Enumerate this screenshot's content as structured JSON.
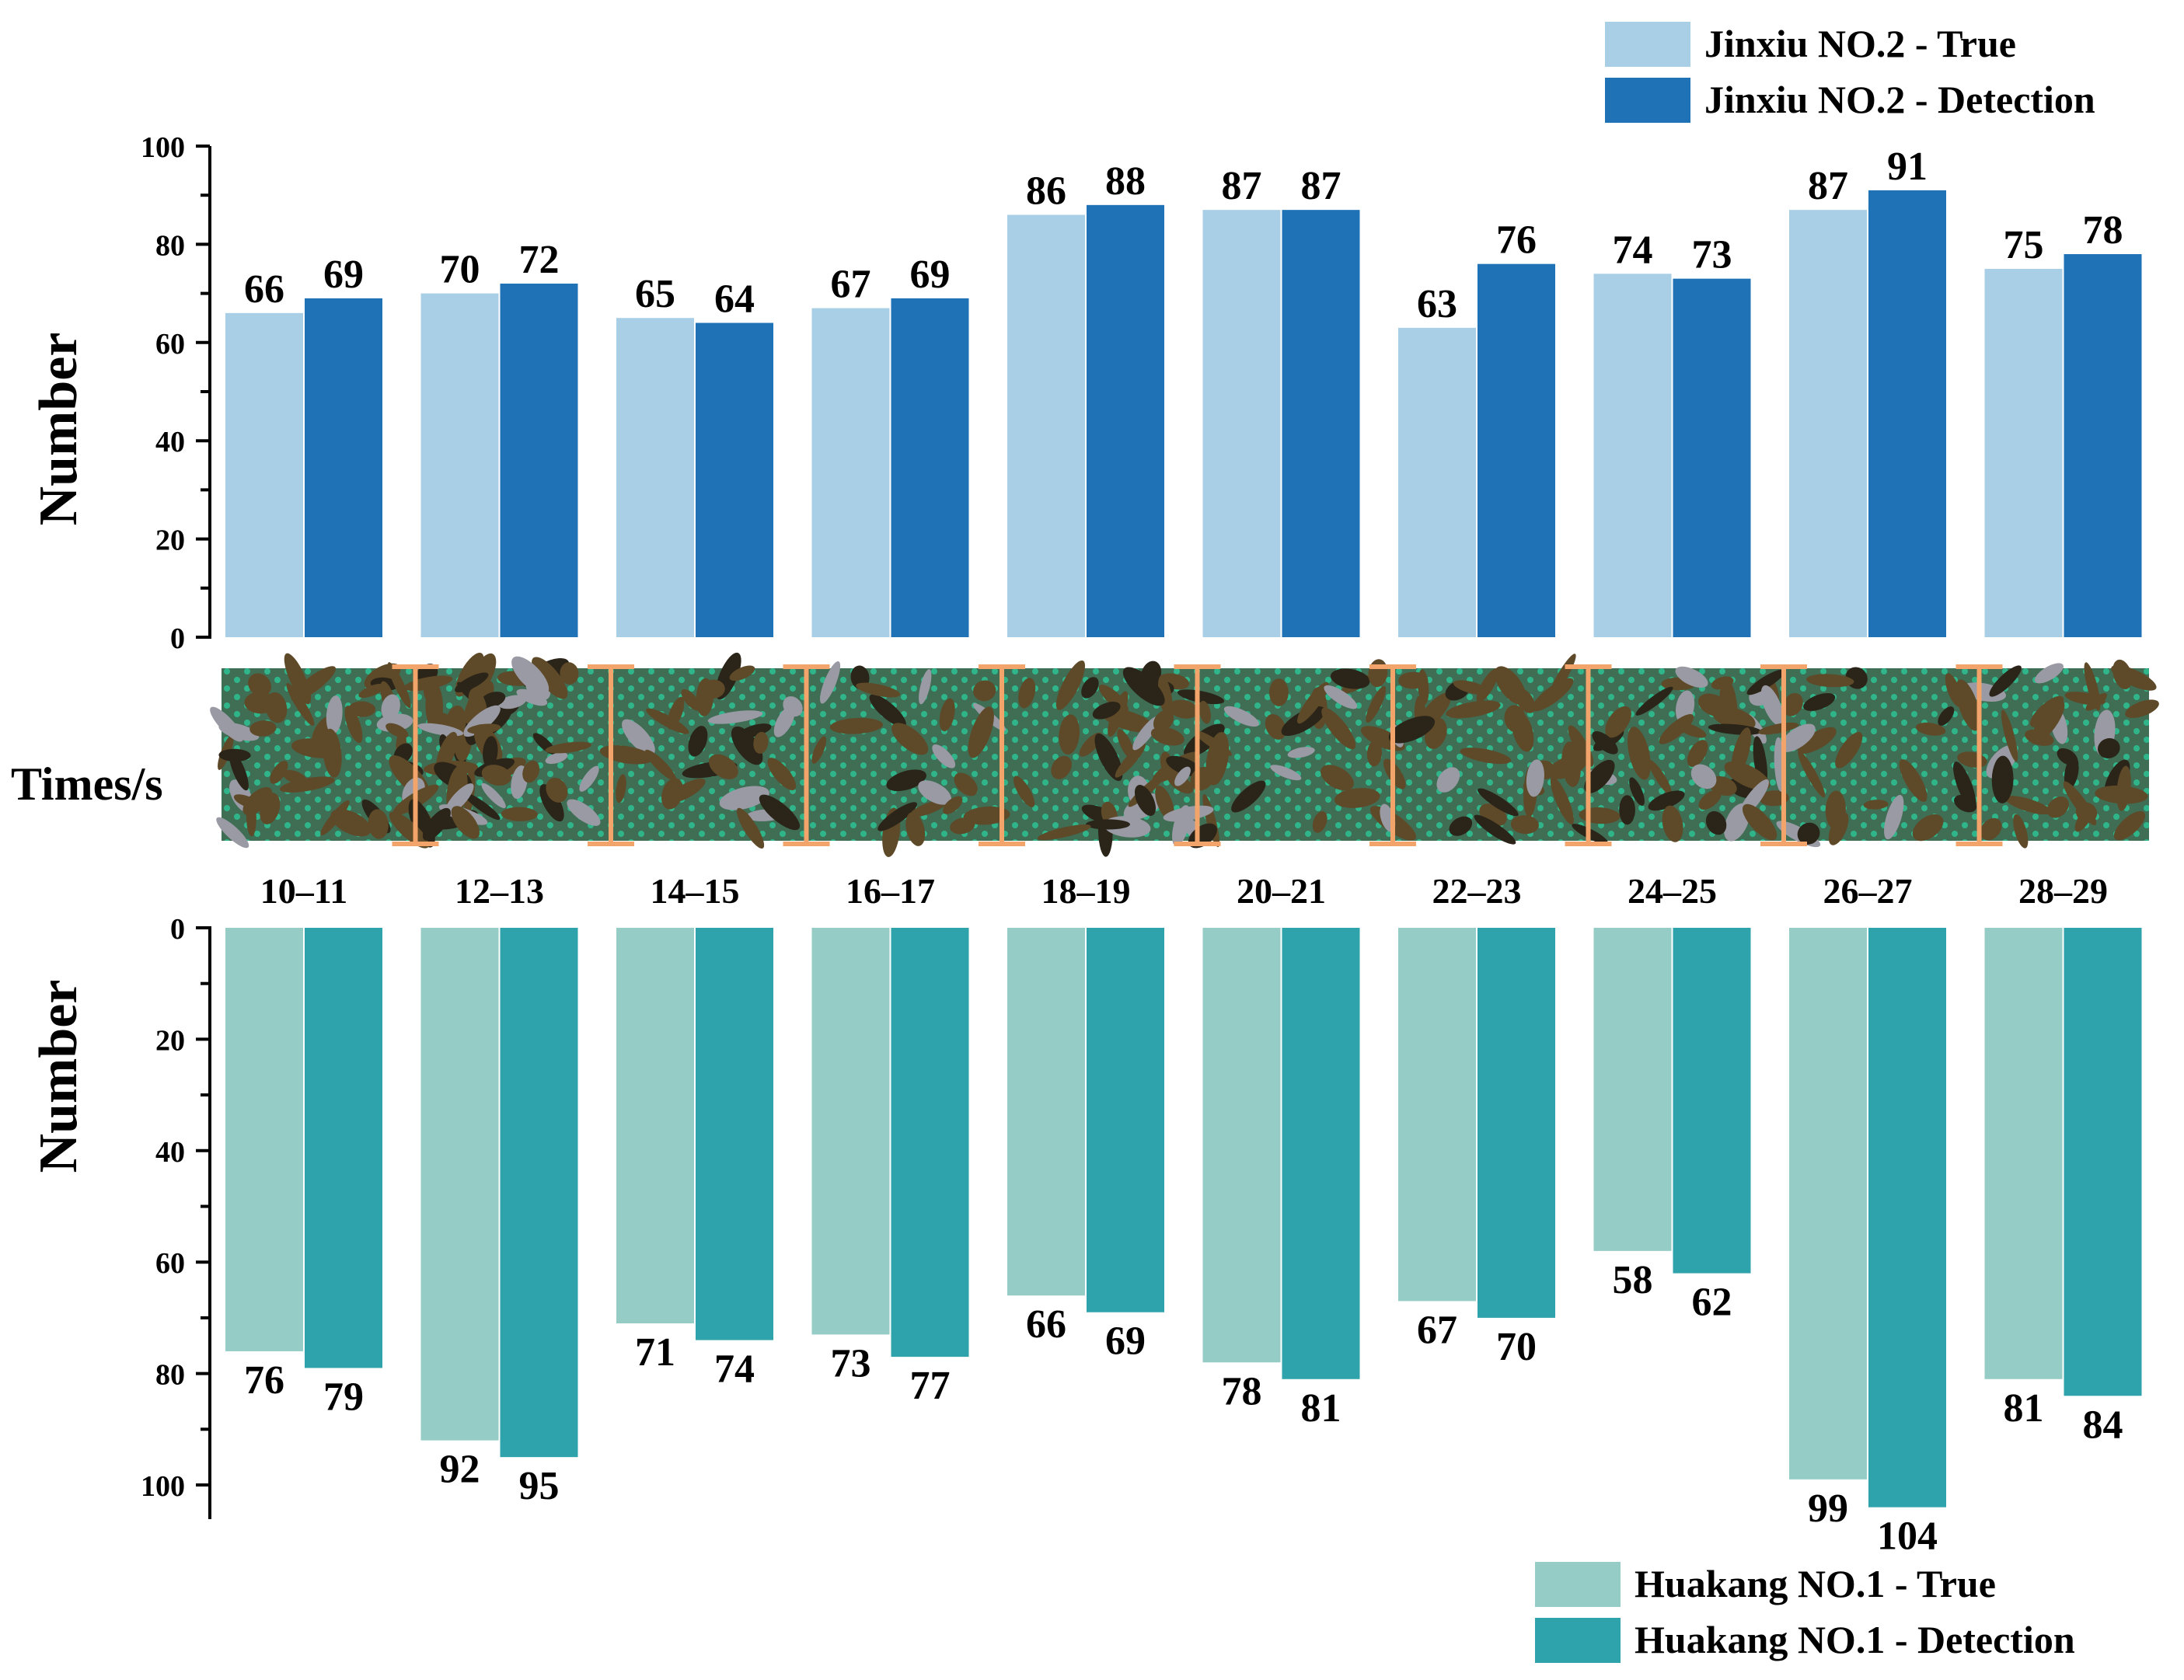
{
  "chart_data": [
    {
      "type": "bar",
      "position": "top",
      "categories": [
        "10–11",
        "12–13",
        "14–15",
        "16–17",
        "18–19",
        "20–21",
        "22–23",
        "24–25",
        "26–27",
        "28–29"
      ],
      "series": [
        {
          "name": "Jinxiu NO.2 - True",
          "color": "#a8cfe6",
          "values": [
            66,
            70,
            65,
            67,
            86,
            87,
            63,
            74,
            87,
            75
          ]
        },
        {
          "name": "Jinxiu NO.2 - Detection",
          "color": "#1f72b5",
          "values": [
            69,
            72,
            64,
            69,
            88,
            87,
            76,
            73,
            91,
            78
          ]
        }
      ],
      "ylabel": "Number",
      "ylim": [
        0,
        100
      ],
      "yticks": [
        0,
        20,
        40,
        60,
        80,
        100
      ],
      "legend": "top-right",
      "data_labels": true
    },
    {
      "type": "bar",
      "position": "bottom",
      "orientation": "downward",
      "categories": [
        "10–11",
        "12–13",
        "14–15",
        "16–17",
        "18–19",
        "20–21",
        "22–23",
        "24–25",
        "26–27",
        "28–29"
      ],
      "series": [
        {
          "name": "Huakang NO.1 - True",
          "color": "#95cdc6",
          "values": [
            76,
            92,
            71,
            73,
            66,
            78,
            67,
            58,
            99,
            81
          ]
        },
        {
          "name": "Huakang NO.1 - Detection",
          "color": "#2fa3ab",
          "values": [
            79,
            95,
            74,
            77,
            69,
            81,
            70,
            62,
            104,
            84
          ]
        }
      ],
      "ylabel": "Number",
      "ylim": [
        0,
        105
      ],
      "yticks": [
        0,
        20,
        40,
        60,
        80,
        100
      ],
      "legend": "bottom-right",
      "data_labels": true
    }
  ],
  "strip": {
    "label": "Times/s",
    "segments": 10,
    "colors": {
      "base": "#3f6e55",
      "mesh": "#2fb589",
      "leaf": "#5e4a28",
      "dark": "#2b2418",
      "silver": "#9a9aa4",
      "marker": "#f2a46a"
    }
  }
}
